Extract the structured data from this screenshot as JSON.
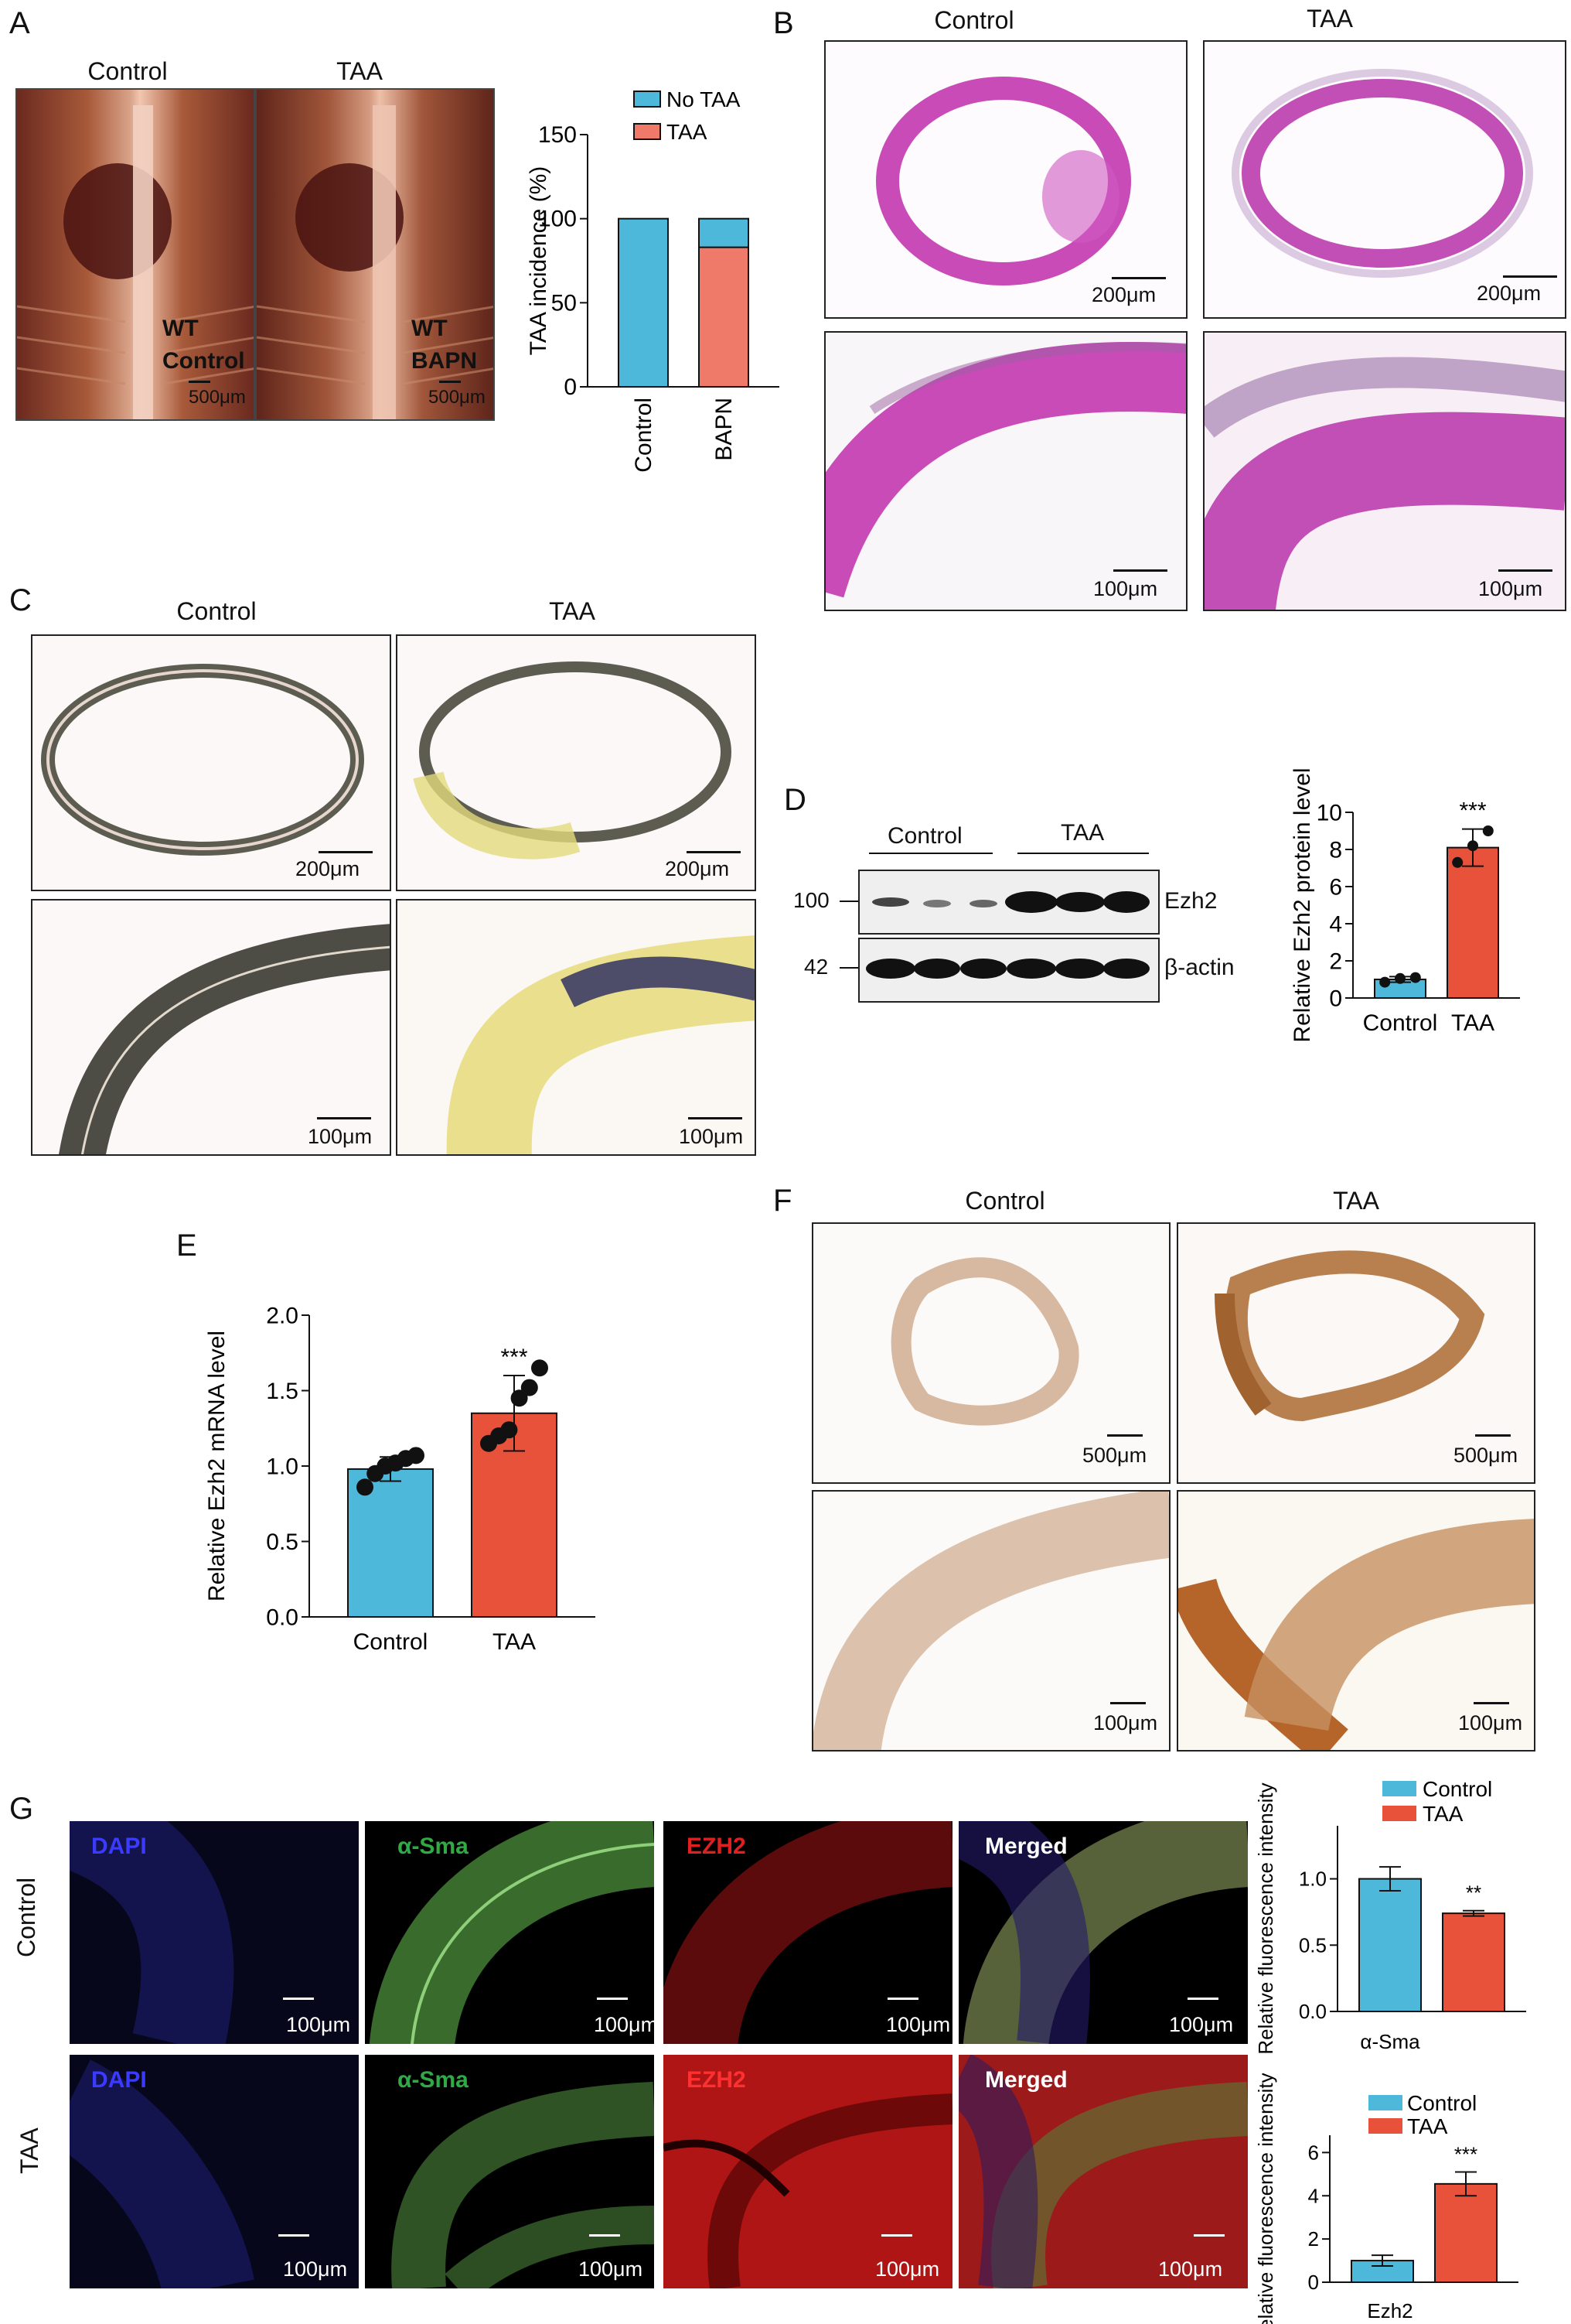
{
  "panel_letters": {
    "a": "A",
    "b": "B",
    "c": "C",
    "d": "D",
    "e": "E",
    "f": "F",
    "g": "G"
  },
  "panel_a": {
    "headers": [
      "Control",
      "TAA"
    ],
    "photo_left_label": [
      "WT",
      "Control"
    ],
    "photo_right_label": [
      "WT",
      "BAPN"
    ],
    "scale": "500μm"
  },
  "panel_b": {
    "headers": [
      "Control",
      "TAA"
    ],
    "scale_top": "200μm",
    "scale_bottom": "100μm"
  },
  "panel_c": {
    "headers": [
      "Control",
      "TAA"
    ],
    "scale_top": "200μm",
    "scale_bottom": "100μm"
  },
  "panel_d": {
    "groups": [
      "Control",
      "TAA"
    ],
    "mw": [
      "100",
      "42"
    ],
    "bands": [
      "Ezh2",
      "β-actin"
    ]
  },
  "panel_f": {
    "headers": [
      "Control",
      "TAA"
    ],
    "scale_top": "500μm",
    "scale_bottom": "100μm"
  },
  "panel_g": {
    "row_labels": [
      "Control",
      "TAA"
    ],
    "channel_labels": [
      "DAPI",
      "α-Sma",
      "EZH2",
      "Merged"
    ],
    "scale": "100μm"
  },
  "colors": {
    "control": "#4db8d9",
    "taa": "#e8513a",
    "taa_light": "#ef7a6a"
  },
  "chart_data": [
    {
      "id": "A",
      "type": "bar",
      "stacked": true,
      "categories": [
        "Control",
        "BAPN"
      ],
      "series": [
        {
          "name": "No TAA",
          "values": [
            100,
            17
          ]
        },
        {
          "name": "TAA",
          "values": [
            0,
            83
          ]
        }
      ],
      "ylabel": "TAA incidence (%)",
      "ylim": [
        0,
        150
      ],
      "yticks": [
        0,
        50,
        100,
        150
      ],
      "legend": "top"
    },
    {
      "id": "D",
      "type": "bar",
      "categories": [
        "Control",
        "TAA"
      ],
      "values": [
        1.0,
        8.1
      ],
      "errors": [
        0.15,
        1.0
      ],
      "points": [
        [
          0.85,
          1.05,
          1.1
        ],
        [
          7.3,
          8.2,
          9.0
        ]
      ],
      "significance": [
        "",
        "***"
      ],
      "ylabel": "Relative Ezh2 protein level",
      "ylim": [
        0,
        10
      ],
      "yticks": [
        0,
        2,
        4,
        6,
        8,
        10
      ]
    },
    {
      "id": "E",
      "type": "bar",
      "categories": [
        "Control",
        "TAA"
      ],
      "values": [
        0.98,
        1.35
      ],
      "errors": [
        0.08,
        0.25
      ],
      "points": [
        [
          0.86,
          0.95,
          1.0,
          1.02,
          1.05,
          1.07
        ],
        [
          1.15,
          1.2,
          1.24,
          1.45,
          1.52,
          1.65
        ]
      ],
      "significance": [
        "",
        "***"
      ],
      "ylabel": "Relative Ezh2 mRNA level",
      "ylim": [
        0,
        2.0
      ],
      "yticks": [
        "0.0",
        "0.5",
        "1.0",
        "1.5",
        "2.0"
      ]
    },
    {
      "id": "G1",
      "type": "bar",
      "categories": [
        "Control",
        "TAA"
      ],
      "values": [
        1.0,
        0.74
      ],
      "errors": [
        0.09,
        0.02
      ],
      "significance": [
        "",
        "**"
      ],
      "xlabel": "α-Sma",
      "ylabel": "Relative fluorescence intensity",
      "ylim": [
        0,
        1.4
      ],
      "yticks": [
        "0.0",
        "0.5",
        "1.0"
      ],
      "legend_entries": [
        "Control",
        "TAA"
      ]
    },
    {
      "id": "G2",
      "type": "bar",
      "categories": [
        "Control",
        "TAA"
      ],
      "values": [
        1.0,
        4.55
      ],
      "errors": [
        0.25,
        0.55
      ],
      "significance": [
        "",
        "***"
      ],
      "xlabel": "Ezh2",
      "ylabel": "Relative fluorescence intensity",
      "ylim": [
        0,
        6.8
      ],
      "yticks": [
        "0",
        "2",
        "4",
        "6"
      ],
      "legend_entries": [
        "Control",
        "TAA"
      ]
    }
  ]
}
